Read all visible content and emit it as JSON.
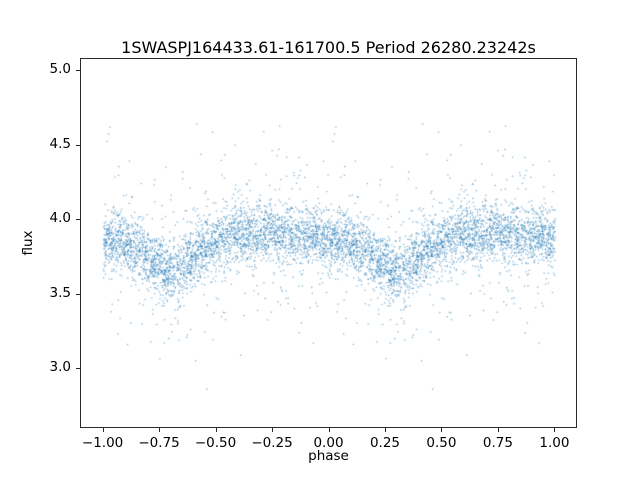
{
  "chart_data": {
    "type": "scatter",
    "title": "1SWASPJ164433.61-161700.5 Period 26280.23242s",
    "xlabel": "phase",
    "ylabel": "flux",
    "xlim": [
      -1.1,
      1.1
    ],
    "ylim": [
      2.6,
      5.08
    ],
    "xticks": [
      -1.0,
      -0.75,
      -0.5,
      -0.25,
      0.0,
      0.25,
      0.5,
      0.75,
      1.0
    ],
    "xtick_labels": [
      "−1.00",
      "−0.75",
      "−0.50",
      "−0.25",
      "0.00",
      "0.25",
      "0.50",
      "0.75",
      "1.00"
    ],
    "yticks": [
      3.0,
      3.5,
      4.0,
      4.5,
      5.0
    ],
    "ytick_labels": [
      "3.0",
      "3.5",
      "4.0",
      "4.5",
      "5.0"
    ],
    "grid": false,
    "legend": null,
    "marker_color": "#1f77b4",
    "marker_alpha": 0.55,
    "marker_size": 1.3,
    "n_points": 3200,
    "points_plotted_at_phase_and_phase_minus_one": true,
    "model": {
      "description": "folded eclipsing-binary light curve: dense flux band near 3.9 with a fading dip near phase 0.3 (repeated at -0.7), gaussian scatter plus sparse outliers spanning ~2.75 to ~5.0",
      "baseline_flux": 3.87,
      "sine_amp": 0.04,
      "sine_phase": 0.75,
      "dip_center_phase": 0.3,
      "dip_depth": 0.17,
      "dip_width": 0.09,
      "noise_sigma": 0.095,
      "outlier_fraction": 0.16,
      "outlier_sigma": 0.27,
      "seed": 7
    }
  }
}
